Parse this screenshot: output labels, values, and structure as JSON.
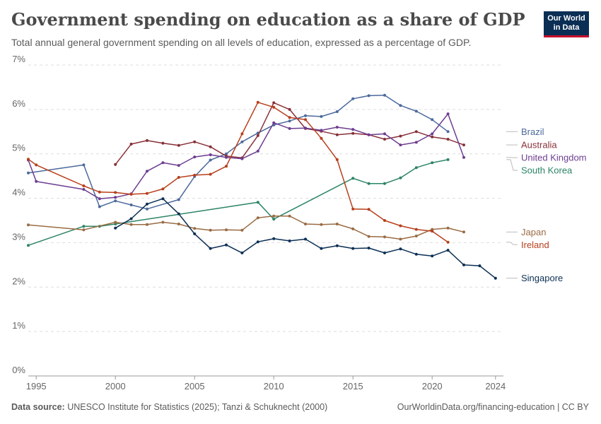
{
  "header": {
    "title": "Government spending on education as a share of GDP",
    "subtitle": "Total annual general government spending on all levels of education, expressed as a percentage of GDP."
  },
  "logo": {
    "line1": "Our World",
    "line2": "in Data",
    "bg_color": "#0b2e54",
    "accent_color": "#c8102e"
  },
  "footer": {
    "source_label": "Data source:",
    "source_text": "UNESCO Institute for Statistics (2025); Tanzi & Schuknecht (2000)",
    "url_text": "OurWorldinData.org/financing-education | CC BY"
  },
  "chart_data": {
    "type": "line",
    "title": "Government spending on education as a share of GDP",
    "xlabel": "",
    "ylabel": "",
    "xlim": [
      1994.5,
      2024.5
    ],
    "ylim": [
      0,
      7
    ],
    "x_ticks": [
      1995,
      2000,
      2005,
      2010,
      2015,
      2020,
      2024
    ],
    "x_tick_labels": [
      "1995",
      "2000",
      "2005",
      "2010",
      "2015",
      "2020",
      "2024"
    ],
    "y_ticks": [
      0,
      1,
      2,
      3,
      4,
      5,
      6,
      7
    ],
    "y_tick_labels": [
      "0%",
      "1%",
      "2%",
      "3%",
      "4%",
      "5%",
      "6%",
      "7%"
    ],
    "grid": true,
    "legend": "right",
    "series": [
      {
        "name": "Brazil",
        "color": "#4c6a9c",
        "points": [
          [
            1994.5,
            4.57
          ],
          [
            1998,
            4.75
          ],
          [
            1999,
            3.81
          ],
          [
            2000,
            3.94
          ],
          [
            2001,
            3.85
          ],
          [
            2002,
            3.76
          ],
          [
            2004,
            3.97
          ],
          [
            2005,
            4.49
          ],
          [
            2006,
            4.86
          ],
          [
            2007,
            5.0
          ],
          [
            2008,
            5.27
          ],
          [
            2009,
            5.47
          ],
          [
            2010,
            5.65
          ],
          [
            2011,
            5.74
          ],
          [
            2012,
            5.86
          ],
          [
            2013,
            5.84
          ],
          [
            2014,
            5.95
          ],
          [
            2015,
            6.24
          ],
          [
            2016,
            6.31
          ],
          [
            2017,
            6.32
          ],
          [
            2018,
            6.09
          ],
          [
            2019,
            5.96
          ],
          [
            2020,
            5.77
          ],
          [
            2021,
            5.5
          ]
        ]
      },
      {
        "name": "Australia",
        "color": "#883039",
        "points": [
          [
            2000,
            4.76
          ],
          [
            2001,
            5.22
          ],
          [
            2002,
            5.3
          ],
          [
            2003,
            5.24
          ],
          [
            2004,
            5.19
          ],
          [
            2005,
            5.27
          ],
          [
            2006,
            5.16
          ],
          [
            2007,
            4.95
          ],
          [
            2008,
            4.91
          ],
          [
            2009,
            5.41
          ],
          [
            2010,
            6.15
          ],
          [
            2011,
            6.0
          ],
          [
            2012,
            5.57
          ],
          [
            2013,
            5.51
          ],
          [
            2014,
            5.43
          ],
          [
            2015,
            5.46
          ],
          [
            2016,
            5.43
          ],
          [
            2017,
            5.33
          ],
          [
            2018,
            5.4
          ],
          [
            2019,
            5.5
          ],
          [
            2020,
            5.38
          ],
          [
            2021,
            5.33
          ],
          [
            2022,
            5.2
          ]
        ]
      },
      {
        "name": "United Kingdom",
        "color": "#6d3e91",
        "points": [
          [
            1994.5,
            4.86
          ],
          [
            1995,
            4.38
          ],
          [
            1998,
            4.2
          ],
          [
            1999,
            3.99
          ],
          [
            2000,
            4.02
          ],
          [
            2001,
            4.1
          ],
          [
            2002,
            4.61
          ],
          [
            2003,
            4.8
          ],
          [
            2004,
            4.74
          ],
          [
            2005,
            4.93
          ],
          [
            2006,
            4.98
          ],
          [
            2007,
            4.92
          ],
          [
            2008,
            4.89
          ],
          [
            2009,
            5.06
          ],
          [
            2010,
            5.7
          ],
          [
            2011,
            5.57
          ],
          [
            2012,
            5.58
          ],
          [
            2013,
            5.53
          ],
          [
            2014,
            5.6
          ],
          [
            2015,
            5.55
          ],
          [
            2016,
            5.43
          ],
          [
            2017,
            5.45
          ],
          [
            2018,
            5.2
          ],
          [
            2019,
            5.26
          ],
          [
            2020,
            5.45
          ],
          [
            2021,
            5.9
          ],
          [
            2022,
            4.92
          ]
        ]
      },
      {
        "name": "South Korea",
        "color": "#2c8465",
        "points": [
          [
            1994.5,
            2.94
          ],
          [
            1998,
            3.37
          ],
          [
            1999,
            3.37
          ],
          [
            2000,
            3.42
          ],
          [
            2009,
            3.91
          ],
          [
            2010,
            3.53
          ],
          [
            2015,
            4.45
          ],
          [
            2016,
            4.33
          ],
          [
            2017,
            4.33
          ],
          [
            2018,
            4.46
          ],
          [
            2019,
            4.69
          ],
          [
            2020,
            4.8
          ],
          [
            2021,
            4.87
          ]
        ]
      },
      {
        "name": "Japan",
        "color": "#9a6c44",
        "points": [
          [
            1994.5,
            3.4
          ],
          [
            1998,
            3.29
          ],
          [
            2000,
            3.46
          ],
          [
            2001,
            3.41
          ],
          [
            2002,
            3.41
          ],
          [
            2003,
            3.46
          ],
          [
            2004,
            3.42
          ],
          [
            2005,
            3.32
          ],
          [
            2006,
            3.28
          ],
          [
            2007,
            3.29
          ],
          [
            2008,
            3.28
          ],
          [
            2009,
            3.56
          ],
          [
            2010,
            3.6
          ],
          [
            2011,
            3.6
          ],
          [
            2012,
            3.42
          ],
          [
            2013,
            3.41
          ],
          [
            2014,
            3.42
          ],
          [
            2015,
            3.31
          ],
          [
            2016,
            3.14
          ],
          [
            2017,
            3.13
          ],
          [
            2018,
            3.08
          ],
          [
            2019,
            3.15
          ],
          [
            2020,
            3.3
          ],
          [
            2021,
            3.33
          ],
          [
            2022,
            3.24
          ]
        ]
      },
      {
        "name": "Ireland",
        "color": "#b73f1c",
        "points": [
          [
            1994.5,
            4.88
          ],
          [
            1995,
            4.75
          ],
          [
            1998,
            4.28
          ],
          [
            1999,
            4.14
          ],
          [
            2000,
            4.13
          ],
          [
            2001,
            4.09
          ],
          [
            2002,
            4.11
          ],
          [
            2003,
            4.21
          ],
          [
            2004,
            4.47
          ],
          [
            2005,
            4.52
          ],
          [
            2006,
            4.54
          ],
          [
            2007,
            4.72
          ],
          [
            2008,
            5.45
          ],
          [
            2009,
            6.16
          ],
          [
            2010,
            6.05
          ],
          [
            2011,
            5.82
          ],
          [
            2012,
            5.77
          ],
          [
            2013,
            5.35
          ],
          [
            2014,
            4.87
          ],
          [
            2015,
            3.76
          ],
          [
            2016,
            3.75
          ],
          [
            2017,
            3.5
          ],
          [
            2018,
            3.38
          ],
          [
            2019,
            3.3
          ],
          [
            2020,
            3.26
          ],
          [
            2021,
            3.01
          ]
        ]
      },
      {
        "name": "Singapore",
        "color": "#0c2f54",
        "points": [
          [
            2000,
            3.33
          ],
          [
            2001,
            3.54
          ],
          [
            2002,
            3.87
          ],
          [
            2003,
            3.99
          ],
          [
            2004,
            3.65
          ],
          [
            2005,
            3.2
          ],
          [
            2006,
            2.87
          ],
          [
            2007,
            2.95
          ],
          [
            2008,
            2.77
          ],
          [
            2009,
            3.02
          ],
          [
            2010,
            3.09
          ],
          [
            2011,
            3.04
          ],
          [
            2012,
            3.08
          ],
          [
            2013,
            2.87
          ],
          [
            2014,
            2.93
          ],
          [
            2015,
            2.87
          ],
          [
            2016,
            2.88
          ],
          [
            2017,
            2.77
          ],
          [
            2018,
            2.86
          ],
          [
            2019,
            2.74
          ],
          [
            2020,
            2.7
          ],
          [
            2021,
            2.83
          ],
          [
            2022,
            2.5
          ],
          [
            2023,
            2.48
          ],
          [
            2024,
            2.2
          ]
        ]
      }
    ]
  }
}
